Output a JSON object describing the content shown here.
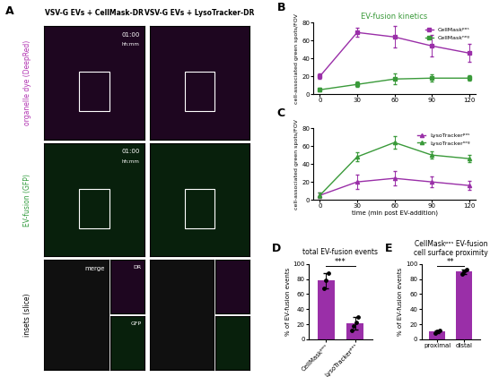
{
  "panel_A": {
    "panel": "A",
    "columns": [
      "VSV-G EVs + CellMask-DR",
      "VSV-G EVs + LysoTracker-DR"
    ],
    "rows": [
      {
        "label": "organelle dye (DeepRed)",
        "color": "#b030b0"
      },
      {
        "label": "EV-fusion (GFP)",
        "color": "#2e9a3a"
      },
      {
        "label": "insets (slice)",
        "color": "#000000"
      }
    ],
    "timestamp": "01:00",
    "timestamp_unit": "hh:mm",
    "inset_labels": [
      "merge",
      "DR",
      "GFP"
    ]
  },
  "chart_data": [
    {
      "panel": "B",
      "type": "line",
      "title": "EV-fusion kinetics",
      "y_label": "cell-associated green spots/FOV",
      "x": [
        0,
        30,
        60,
        90,
        120
      ],
      "xlim": [
        -5,
        125
      ],
      "xticks": [
        0,
        30,
        60,
        90,
        120
      ],
      "ylim": [
        0,
        80
      ],
      "yticks": [
        0,
        20,
        40,
        60,
        80
      ],
      "legend": "upper right",
      "series": [
        {
          "name": "CellMaskᵖᵒˢ",
          "color": "#9a2fa8",
          "marker": "square",
          "values": [
            20,
            69,
            64,
            54,
            46
          ],
          "errors": [
            3,
            5,
            12,
            12,
            10
          ]
        },
        {
          "name": "CellMaskⁿᵉᵍ",
          "color": "#3a9a3a",
          "marker": "square",
          "values": [
            5,
            11,
            17,
            18,
            18
          ],
          "errors": [
            2,
            3,
            6,
            4,
            3
          ]
        }
      ]
    },
    {
      "panel": "C",
      "type": "line",
      "x_label": "time (min post EV-addition)",
      "y_label": "cell-associated green spots/FOV",
      "x": [
        0,
        30,
        60,
        90,
        120
      ],
      "xlim": [
        -5,
        125
      ],
      "xticks": [
        0,
        30,
        60,
        90,
        120
      ],
      "ylim": [
        0,
        80
      ],
      "yticks": [
        0,
        20,
        40,
        60,
        80
      ],
      "legend": "upper right",
      "series": [
        {
          "name": "LysoTrackerᵖᵒˢ",
          "color": "#9a2fa8",
          "marker": "triangle",
          "values": [
            5,
            20,
            24,
            20,
            16
          ],
          "errors": [
            3,
            8,
            8,
            6,
            5
          ]
        },
        {
          "name": "LysoTrackerⁿᵉᵍ",
          "color": "#3a9a3a",
          "marker": "triangle",
          "values": [
            5,
            48,
            64,
            50,
            46
          ],
          "errors": [
            3,
            5,
            7,
            4,
            4
          ]
        }
      ]
    },
    {
      "panel": "D",
      "type": "bar",
      "title": "total EV-fusion events",
      "y_label": "% of EV-fusion events",
      "categories": [
        "CellMaskᵖᵒˢ",
        "LysoTrackerᵖᵒˢ"
      ],
      "values": [
        78,
        21
      ],
      "errors": [
        10,
        8
      ],
      "points": [
        [
          68,
          78,
          88
        ],
        [
          12,
          18,
          22,
          30
        ]
      ],
      "colors": [
        "#9a2fa8",
        "#9a2fa8"
      ],
      "ylim": [
        0,
        100
      ],
      "yticks": [
        0,
        20,
        40,
        60,
        80,
        100
      ],
      "significance": "***"
    },
    {
      "panel": "E",
      "type": "bar",
      "title": "CellMaskᵖᵒˢ EV-fusion cell surface proximity",
      "y_label": "% of EV-fusion events",
      "categories": [
        "proximal",
        "distal"
      ],
      "values": [
        10,
        90
      ],
      "errors": [
        2,
        3
      ],
      "points": [
        [
          8,
          10,
          12
        ],
        [
          87,
          90,
          92
        ]
      ],
      "colors": [
        "#9a2fa8",
        "#9a2fa8"
      ],
      "ylim": [
        0,
        100
      ],
      "yticks": [
        0,
        20,
        40,
        60,
        80,
        100
      ],
      "significance": "**"
    }
  ]
}
